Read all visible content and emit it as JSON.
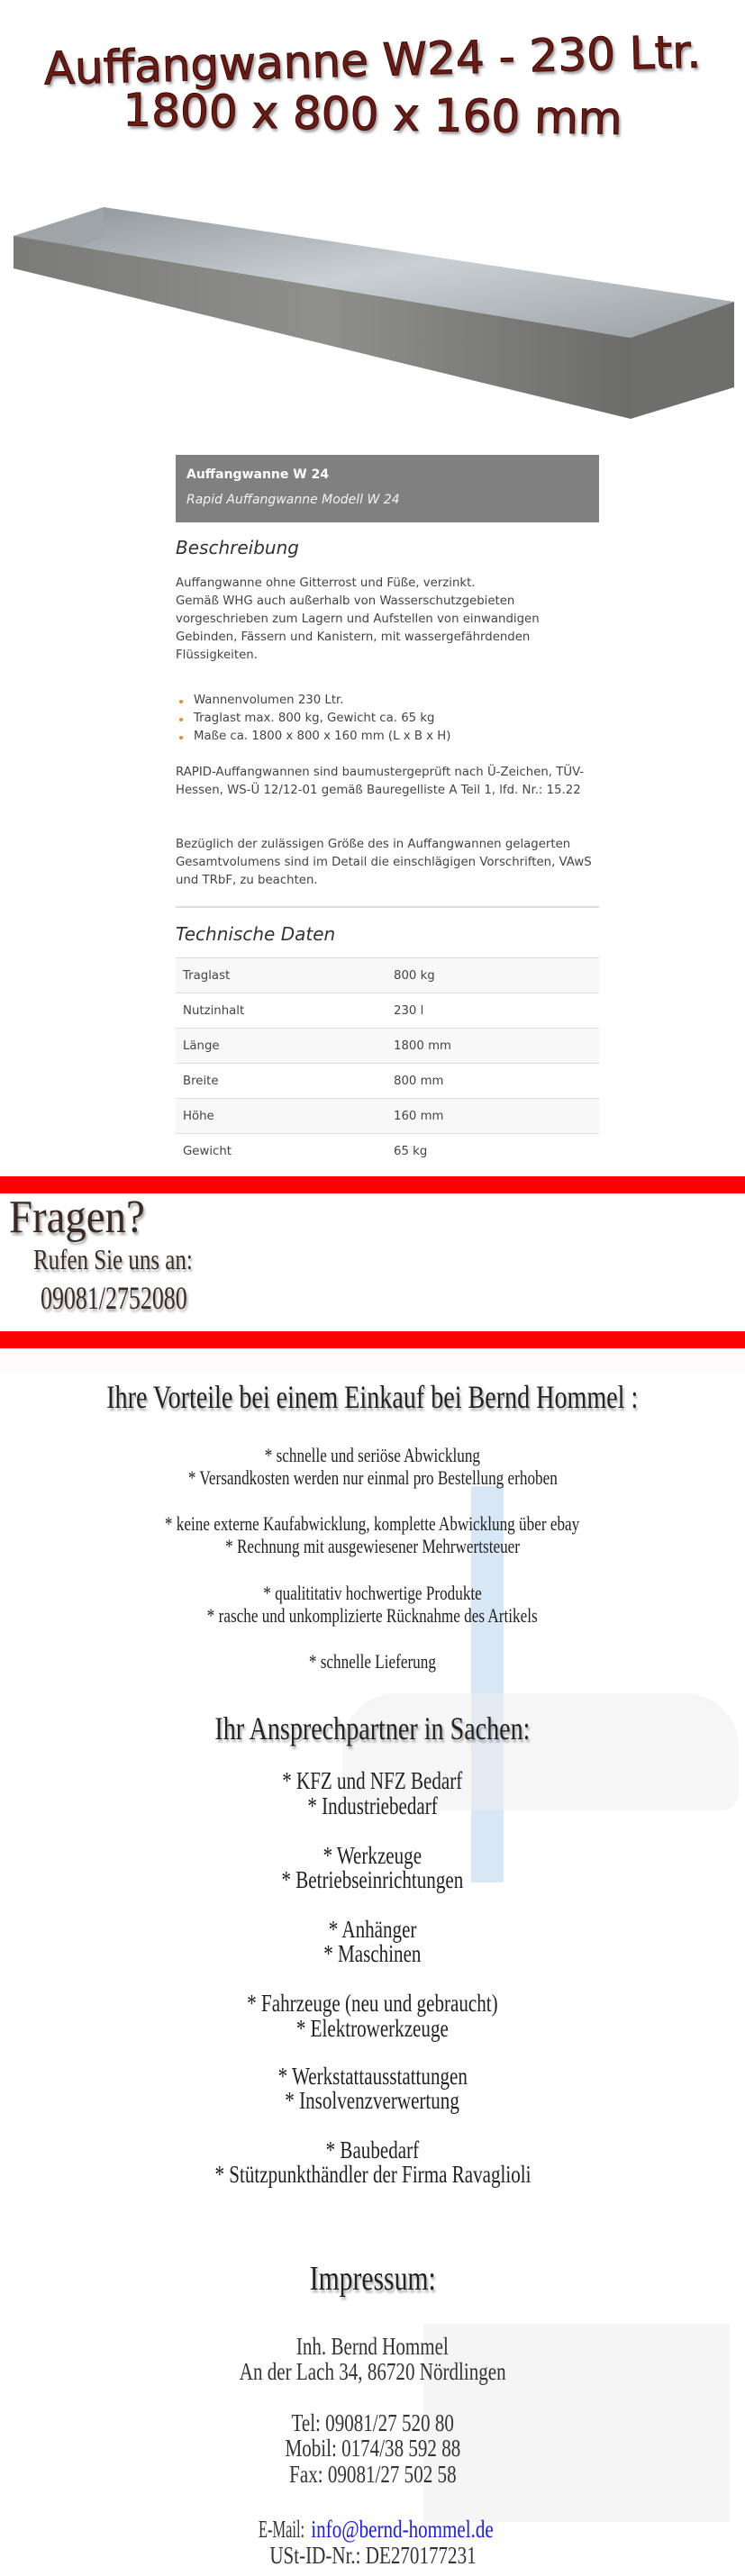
{
  "banner": {
    "title_line1": "Auffangwanne W24 - 230 Ltr.",
    "title_line2": "1800 x 800 x 160 mm"
  },
  "product": {
    "name": "Auffangwanne W 24",
    "subtitle": "Rapid Auffangwanne Modell W 24",
    "description_heading": "Beschreibung",
    "description": "Auffangwanne ohne Gitterrost und Füße, verzinkt.",
    "description2": "Gemäß WHG auch außerhalb von Wasserschutzgebieten vorgeschrieben zum Lagern und Aufstellen von einwandigen Gebinden, Fässern und Kanistern, mit wassergefährdenden Flüssigkeiten.",
    "features": [
      "Wannenvolumen 230 Ltr.",
      "Traglast max. 800 kg, Gewicht ca. 65 kg",
      "Maße ca. 1800 x 800 x 160 mm (L x B x H)"
    ],
    "certification": "RAPID-Auffangwannen sind baumustergeprüft nach Ü-Zeichen, TÜV-Hessen, WS-Ü 12/12-01 gemäß Bauregelliste A Teil 1, lfd. Nr.: 15.22",
    "note": "Bezüglich der zulässigen Größe des in Auffangwannen gelagerten Gesamtvolumens sind im Detail die einschlägigen Vorschriften, VAwS und TRbF, zu beachten.",
    "specs_heading": "Technische Daten",
    "specs": [
      {
        "label": "Traglast",
        "value": "800 kg"
      },
      {
        "label": "Nutzinhalt",
        "value": "230 l"
      },
      {
        "label": "Länge",
        "value": "1800 mm"
      },
      {
        "label": "Breite",
        "value": "800 mm"
      },
      {
        "label": "Höhe",
        "value": "160 mm"
      },
      {
        "label": "Gewicht",
        "value": "65 kg"
      }
    ]
  },
  "contact_banner": {
    "question": "Fragen?",
    "call": "Rufen Sie uns an:",
    "phone": "09081/2752080"
  },
  "advantages": {
    "heading": "Ihre Vorteile bei einem Einkauf bei Bernd Hommel :",
    "items": [
      "* schnelle und seriöse Abwicklung",
      "* Versandkosten werden nur einmal pro Bestellung erhoben",
      "* keine externe Kaufabwicklung, komplette Abwicklung über ebay",
      "* Rechnung mit ausgewiesener Mehrwertsteuer",
      "* qualititativ hochwertige Produkte",
      "* rasche und unkomplizierte Rücknahme des Artikels",
      "* schnelle Lieferung"
    ]
  },
  "partner": {
    "heading": "Ihr Ansprechpartner in Sachen:",
    "items": [
      "* KFZ und NFZ Bedarf",
      "* Industriebedarf",
      "* Werkzeuge",
      "* Betriebseinrichtungen",
      "* Anhänger",
      "* Maschinen",
      "* Fahrzeuge (neu und gebraucht)",
      "* Elektrowerkzeuge",
      "* Werkstattausstattungen",
      "* Insolvenzverwertung",
      "* Baubedarf",
      "* Stützpunkthändler der Firma Ravaglioli"
    ]
  },
  "impressum": {
    "heading": "Impressum:",
    "owner": "Inh. Bernd Hommel",
    "address": "An der Lach 34, 86720 Nördlingen",
    "tel": "Tel: 09081/27 520 80",
    "mobile": "Mobil: 0174/38 592 88",
    "fax": "Fax: 09081/27 502 58",
    "email_label": "E-Mail: ",
    "email": "info@bernd-hommel.de",
    "vat": "USt-ID-Nr.: DE270177231"
  },
  "colors": {
    "accent_red": "#ff0000",
    "title_red": "#6b1a14",
    "header_grey": "#808080",
    "bullet": "#f08a1c",
    "link": "#1a1aff"
  }
}
